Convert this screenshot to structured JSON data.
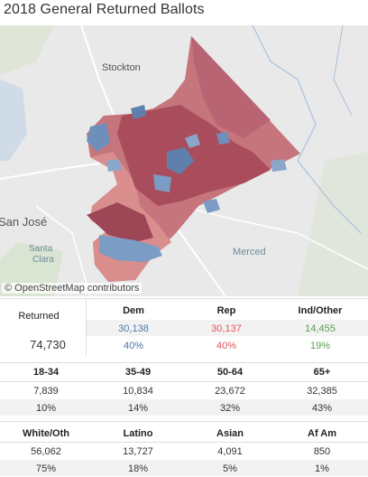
{
  "title": "2018 General Returned Ballots",
  "map": {
    "places": [
      "Stockton",
      "San José",
      "Santa Clara",
      "Merced"
    ],
    "attribution": "© OpenStreetMap contributors",
    "colors": {
      "dem": "#7b9cc4",
      "rep_light": "#d98d8d",
      "rep_dark": "#b45a68",
      "rep_mid": "#c7757d"
    }
  },
  "returned": {
    "label": "Returned",
    "value": "74,730"
  },
  "party": {
    "headers": [
      "Dem",
      "Rep",
      "Ind/Other"
    ],
    "counts": [
      "30,138",
      "30,137",
      "14,455"
    ],
    "pcts": [
      "40%",
      "40%",
      "19%"
    ],
    "colors": [
      "#4e79a7",
      "#e15759",
      "#59a14f"
    ]
  },
  "age": {
    "headers": [
      "18-34",
      "35-49",
      "50-64",
      "65+"
    ],
    "counts": [
      "7,839",
      "10,834",
      "23,672",
      "32,385"
    ],
    "pcts": [
      "10%",
      "14%",
      "32%",
      "43%"
    ]
  },
  "ethnicity": {
    "headers": [
      "White/Oth",
      "Latino",
      "Asian",
      "Af Am"
    ],
    "counts": [
      "56,062",
      "13,727",
      "4,091",
      "850"
    ],
    "pcts": [
      "75%",
      "18%",
      "5%",
      "1%"
    ]
  }
}
